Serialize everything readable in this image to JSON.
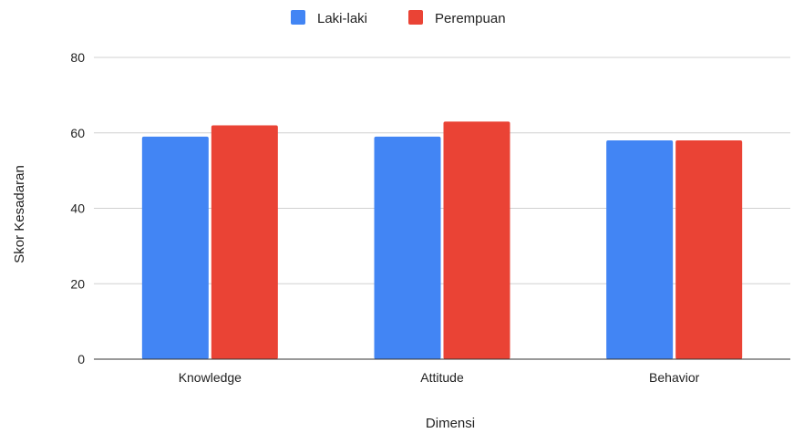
{
  "chart_data": {
    "type": "bar",
    "title": "",
    "xlabel": "Dimensi",
    "ylabel": "Skor Kesadaran",
    "categories": [
      "Knowledge",
      "Attitude",
      "Behavior"
    ],
    "series": [
      {
        "name": "Laki-laki",
        "values": [
          59,
          59,
          58
        ],
        "color": "#4285f4"
      },
      {
        "name": "Perempuan",
        "values": [
          62,
          63,
          58
        ],
        "color": "#ea4335"
      }
    ],
    "ylim": [
      0,
      80
    ],
    "yticks": [
      0,
      20,
      40,
      60,
      80
    ],
    "grid": true,
    "legend": "top-center"
  }
}
